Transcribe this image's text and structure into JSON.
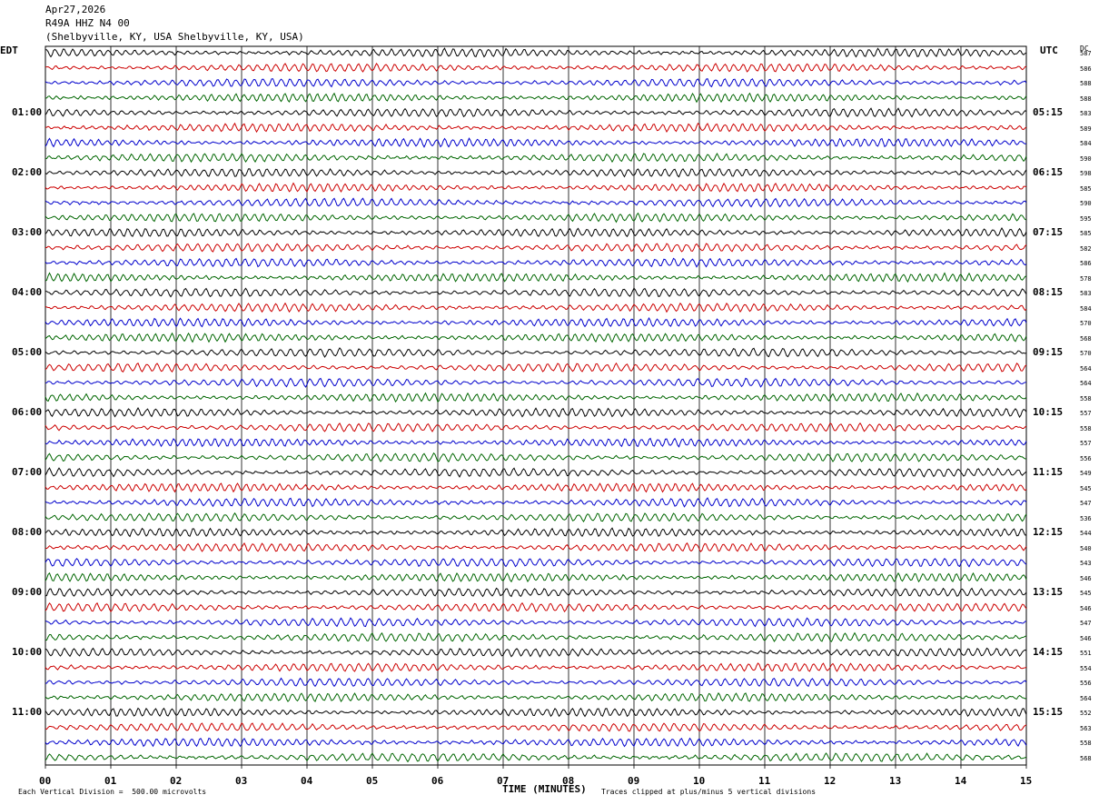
{
  "header": {
    "date": "Apr27,2026",
    "station": "R49A HHZ N4 00",
    "location": "(Shelbyville, KY, USA Shelbyville, KY, USA)"
  },
  "left_label": "EDT",
  "right_label": "UTC",
  "dc_label": "DC",
  "footer": {
    "scale": "Each Vertical Division =  500.00 microvolts",
    "clip": "Traces clipped at plus/minus 5 vertical divisions"
  },
  "colors": {
    "trace_cycle": [
      "#000000",
      "#cc0000",
      "#0000cc",
      "#006600"
    ],
    "grid": "#000000"
  },
  "chart_data": {
    "type": "line",
    "title": "",
    "xlabel": "TIME (MINUTES)",
    "xlim": [
      0,
      15
    ],
    "x_ticks": [
      "00",
      "01",
      "02",
      "03",
      "04",
      "05",
      "06",
      "07",
      "08",
      "09",
      "10",
      "11",
      "12",
      "13",
      "14",
      "15"
    ],
    "left_time_labels": [
      "01:00",
      "02:00",
      "03:00",
      "04:00",
      "05:00",
      "06:00",
      "07:00",
      "08:00",
      "09:00",
      "10:00",
      "11:00"
    ],
    "right_time_labels": [
      "05:15",
      "06:15",
      "07:15",
      "08:15",
      "09:15",
      "10:15",
      "11:15",
      "12:15",
      "13:15",
      "14:15",
      "15:15"
    ],
    "trace_count": 48,
    "dc_offsets": [
      587,
      586,
      588,
      588,
      583,
      589,
      584,
      590,
      598,
      585,
      590,
      595,
      585,
      582,
      586,
      578,
      583,
      584,
      570,
      568,
      570,
      564,
      564,
      558,
      557,
      558,
      557,
      556,
      549,
      545,
      547,
      536,
      544,
      540,
      543,
      546,
      545,
      546,
      547,
      546,
      551,
      554,
      556,
      564,
      552,
      563,
      558,
      568
    ]
  }
}
